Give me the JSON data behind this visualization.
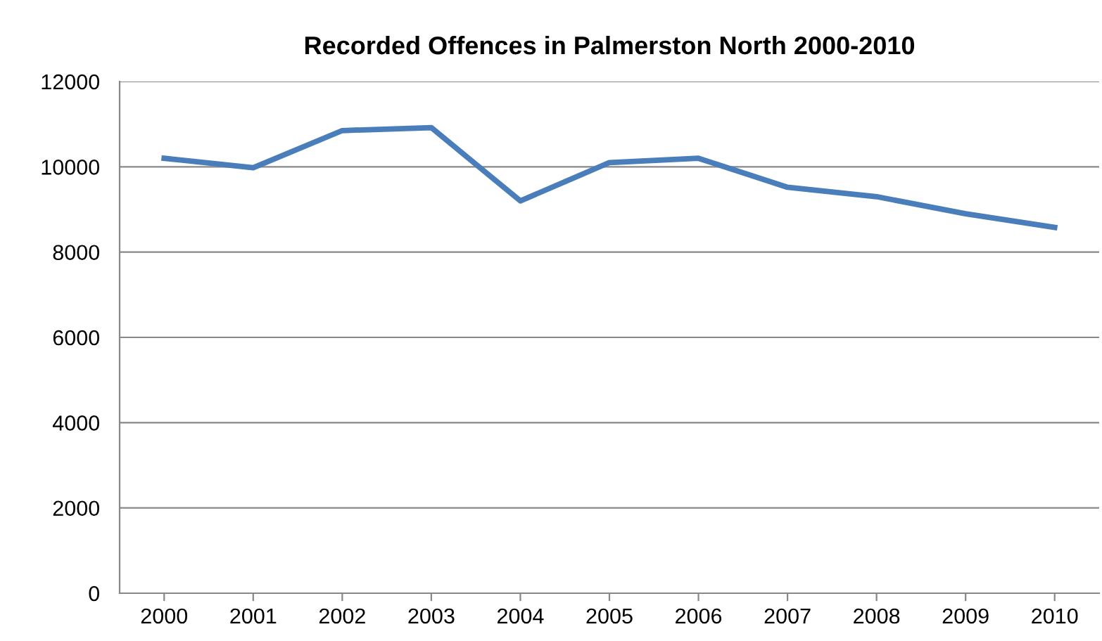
{
  "chart_data": {
    "type": "line",
    "title": "Recorded Offences in Palmerston North 2000-2010",
    "categories": [
      "2000",
      "2001",
      "2002",
      "2003",
      "2004",
      "2005",
      "2006",
      "2007",
      "2008",
      "2009",
      "2010"
    ],
    "series": [
      {
        "color": "#4a7ebb",
        "values": [
          10200,
          9980,
          10850,
          10920,
          9200,
          10100,
          10200,
          9520,
          9300,
          8900,
          8580
        ]
      }
    ],
    "ylim": [
      0,
      12000
    ],
    "yticks": [
      0,
      2000,
      4000,
      6000,
      8000,
      10000,
      12000
    ],
    "grid": "y",
    "legend": false,
    "marker": "none",
    "line_style": "solid"
  }
}
